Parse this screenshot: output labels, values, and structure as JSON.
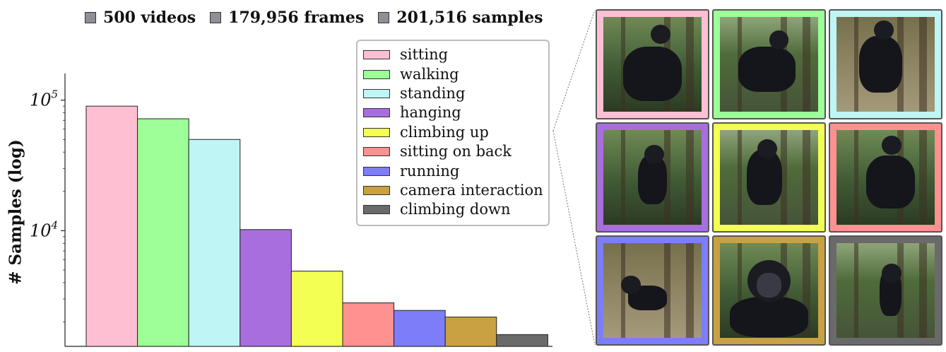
{
  "header": {
    "stats": [
      {
        "label": "500 videos"
      },
      {
        "label": "179,956 frames"
      },
      {
        "label": "201,516 samples"
      }
    ],
    "stat_box_color": "#8f8f97"
  },
  "chart_data": {
    "type": "bar",
    "title": "",
    "xlabel": "",
    "ylabel": "# Samples (log)",
    "yscale": "log",
    "ylim": [
      1300,
      160000
    ],
    "yticks": [
      {
        "value": 10000,
        "base": "10",
        "exp": "4"
      },
      {
        "value": 100000,
        "base": "10",
        "exp": "5"
      }
    ],
    "legend_position": "top-right",
    "grid": false,
    "categories": [
      "sitting",
      "walking",
      "standing",
      "hanging",
      "climbing up",
      "sitting on back",
      "running",
      "camera interaction",
      "climbing down"
    ],
    "values": [
      90000,
      72000,
      50000,
      10200,
      4900,
      2800,
      2450,
      2180,
      1600
    ],
    "colors": [
      "#ffbfd3",
      "#9cff97",
      "#c0f5f5",
      "#a96ede",
      "#f3ff52",
      "#ff9191",
      "#7d7dfa",
      "#c9a142",
      "#6a6a6a"
    ]
  },
  "gallery": {
    "tiles": [
      {
        "action": "sitting",
        "color": "#ffbfd3",
        "icon": "chimp-photo"
      },
      {
        "action": "walking",
        "color": "#9cff97",
        "icon": "chimp-photo"
      },
      {
        "action": "standing",
        "color": "#c0f5f5",
        "icon": "chimp-photo"
      },
      {
        "action": "hanging",
        "color": "#a96ede",
        "icon": "chimp-photo"
      },
      {
        "action": "climbing up",
        "color": "#f3ff52",
        "icon": "chimp-photo"
      },
      {
        "action": "sitting on back",
        "color": "#ff9191",
        "icon": "chimp-photo"
      },
      {
        "action": "running",
        "color": "#7d7dfa",
        "icon": "chimp-photo"
      },
      {
        "action": "camera interaction",
        "color": "#c9a142",
        "icon": "chimp-photo"
      },
      {
        "action": "climbing down",
        "color": "#6a6a6a",
        "icon": "chimp-photo"
      }
    ]
  }
}
